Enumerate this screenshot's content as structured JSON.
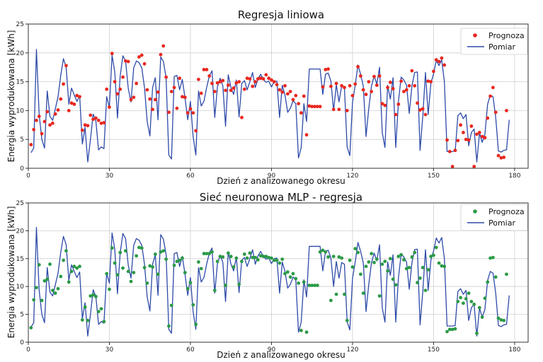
{
  "chart_data": [
    {
      "type": "line",
      "title": "Regresja liniowa",
      "xlabel": "Dzień z analizowanego okresu",
      "ylabel": "Energia wyprodukowana [kWh]",
      "xlim": [
        0,
        185
      ],
      "ylim": [
        0,
        25
      ],
      "xticks": [
        0,
        30,
        60,
        90,
        120,
        150,
        180
      ],
      "yticks": [
        0,
        5,
        10,
        15,
        20,
        25
      ],
      "grid": true,
      "legend_position": "top-right",
      "series": [
        {
          "name": "Prognoza",
          "kind": "scatter",
          "color": "#e8271f",
          "values": [
            4.1,
            6.7,
            8.3,
            9.0,
            6.0,
            8.1,
            9.8,
            7.5,
            7.8,
            9.4,
            10.1,
            12.0,
            14.6,
            17.8,
            10.0,
            11.3,
            11.1,
            12.6,
            12.4,
            6.6,
            7.5,
            7.4,
            9.2,
            8.5,
            8.7,
            8.3,
            7.8,
            7.9,
            13.7,
            10.6,
            19.9,
            15.0,
            12.9,
            13.7,
            15.8,
            18.6,
            18.5,
            11.9,
            12.3,
            14.7,
            19.3,
            19.6,
            18.1,
            13.6,
            12.0,
            10.2,
            11.9,
            13.2,
            19.7,
            21.2,
            15.8,
            9.7,
            13.3,
            14.0,
            10.4,
            15.6,
            12.4,
            12.3,
            9.6,
            10.3,
            9.6,
            6.5,
            15.4,
            13.0,
            17.1,
            17.1,
            16.0,
            14.7,
            13.3,
            14.8,
            15.0,
            15.2,
            13.5,
            14.4,
            13.5,
            13.9,
            14.8,
            15.0,
            8.8,
            13.7,
            15.6,
            15.5,
            14.2,
            15.0,
            15.5,
            15.6,
            15.5,
            16.2,
            15.6,
            15.3,
            15.0,
            14.5,
            13.6,
            13.2,
            14.3,
            12.9,
            13.3,
            11.9,
            12.6,
            11.2,
            9.6,
            12.5,
            5.8,
            10.8,
            10.7,
            10.7,
            10.7,
            10.7,
            14.1,
            17.1,
            17.2,
            14.2,
            10.2,
            14.7,
            10.2,
            14.3,
            14.0,
            10.0,
            14.3,
            12.6,
            14.6,
            17.6,
            16.0,
            13.6,
            12.8,
            15.0,
            13.3,
            15.9,
            14.4,
            16.0,
            11.2,
            10.9,
            14.0,
            14.9,
            13.8,
            9.3,
            11.1,
            15.1,
            13.3,
            13.6,
            14.3,
            16.9,
            14.3,
            11.3,
            10.1,
            10.3,
            9.3,
            15.1,
            15.0,
            16.8,
            18.8,
            18.5,
            19.1,
            17.9,
            4.9,
            2.9,
            0.3,
            3.1,
            4.8,
            7.5,
            6.2,
            5.0,
            4.9,
            7.3,
            0.3,
            5.9,
            6.2,
            5.5,
            5.3,
            8.7,
            12.5,
            14.0,
            9.7,
            2.2,
            1.8,
            1.9,
            10.0
          ]
        },
        {
          "name": "Pomiar",
          "kind": "line",
          "color": "#2e4aa8",
          "values": [
            2.7,
            3.5,
            20.6,
            9.4,
            5.0,
            3.5,
            13.4,
            9.0,
            8.3,
            10.3,
            12.4,
            16.1,
            19.0,
            17.5,
            11.1,
            13.9,
            12.7,
            11.6,
            12.6,
            4.2,
            7.1,
            1.1,
            5.0,
            9.4,
            8.2,
            3.2,
            3.7,
            3.4,
            12.4,
            10.6,
            19.6,
            16.7,
            8.7,
            16.0,
            19.5,
            18.6,
            13.8,
            11.5,
            17.4,
            18.6,
            18.3,
            17.4,
            14.0,
            8.1,
            5.6,
            14.0,
            15.7,
            8.4,
            19.3,
            18.5,
            15.7,
            2.3,
            1.6,
            15.9,
            16.1,
            13.6,
            15.4,
            12.2,
            8.4,
            11.6,
            5.5,
            2.3,
            13.4,
            10.8,
            11.6,
            14.0,
            16.0,
            16.9,
            8.8,
            14.1,
            15.6,
            14.3,
            7.3,
            16.2,
            14.0,
            12.8,
            15.3,
            8.9,
            14.7,
            15.2,
            13.6,
            15.0,
            16.6,
            14.0,
            15.5,
            16.3,
            15.4,
            14.9,
            15.1,
            14.1,
            15.0,
            15.1,
            8.8,
            14.4,
            12.7,
            9.7,
            10.4,
            11.7,
            11.2,
            1.8,
            3.6,
            11.2,
            8.1,
            17.2,
            17.2,
            17.2,
            17.2,
            17.2,
            12.8,
            16.3,
            16.5,
            15.1,
            10.0,
            14.5,
            11.5,
            14.3,
            14.0,
            3.7,
            2.2,
            11.5,
            14.4,
            17.9,
            16.3,
            14.2,
            5.5,
            10.3,
            14.2,
            16.0,
            14.6,
            17.5,
            6.2,
            3.6,
            14.4,
            12.0,
            15.7,
            3.6,
            11.6,
            15.8,
            15.3,
            14.4,
            9.5,
            14.3,
            16.6,
            16.7,
            3.1,
            9.0,
            16.6,
            9.3,
            14.7,
            16.4,
            18.7,
            17.8,
            18.8,
            15.0,
            2.9,
            2.9,
            2.9,
            3.0,
            9.1,
            9.6,
            8.6,
            9.3,
            3.9,
            6.2,
            6.8,
            1.1,
            6.1,
            4.5,
            5.9,
            11.1,
            12.7,
            12.4,
            8.8,
            3.0,
            2.8,
            3.1,
            3.2,
            8.4
          ]
        }
      ]
    },
    {
      "type": "line",
      "title": "Sieć neuronowa MLP - regresja",
      "xlabel": "Dzień z analizowanego okresu",
      "ylabel": "Energia wyprodukowana [kWh]",
      "xlim": [
        0,
        185
      ],
      "ylim": [
        0,
        25
      ],
      "xticks": [
        0,
        30,
        60,
        90,
        120,
        150,
        180
      ],
      "yticks": [
        0,
        5,
        10,
        15,
        20,
        25
      ],
      "grid": true,
      "legend_position": "top-right",
      "series": [
        {
          "name": "Prognoza",
          "kind": "scatter",
          "color": "#2a9a46",
          "values": [
            2.6,
            7.6,
            9.8,
            13.9,
            7.5,
            11.0,
            11.3,
            14.0,
            9.3,
            8.8,
            9.6,
            11.8,
            14.7,
            16.4,
            10.8,
            12.7,
            13.6,
            13.3,
            13.6,
            4.0,
            6.3,
            3.9,
            8.3,
            8.5,
            8.2,
            5.5,
            6.0,
            3.7,
            12.3,
            9.5,
            16.9,
            14.2,
            12.1,
            16.1,
            13.3,
            16.4,
            12.7,
            10.9,
            12.5,
            15.5,
            17.0,
            16.9,
            13.4,
            10.6,
            13.7,
            13.5,
            15.8,
            12.2,
            16.2,
            16.4,
            14.9,
            2.9,
            6.6,
            13.8,
            14.5,
            14.7,
            15.1,
            12.5,
            9.6,
            10.7,
            6.7,
            3.2,
            14.4,
            13.2,
            15.9,
            15.9,
            15.9,
            16.2,
            9.3,
            14.5,
            15.4,
            15.3,
            10.2,
            16.0,
            15.4,
            13.5,
            15.1,
            10.4,
            14.5,
            15.8,
            15.1,
            16.0,
            15.2,
            15.2,
            14.8,
            15.5,
            15.4,
            15.4,
            15.2,
            15.1,
            14.7,
            14.7,
            14.2,
            14.9,
            12.3,
            12.6,
            11.7,
            12.3,
            11.4,
            10.6,
            2.1,
            10.8,
            1.8,
            10.2,
            10.2,
            10.2,
            10.2,
            16.2,
            16.5,
            16.2,
            15.3,
            7.5,
            15.4,
            8.6,
            15.3,
            15.1,
            8.6,
            3.9,
            14.7,
            13.5,
            16.8,
            16.1,
            12.2,
            8.8,
            13.6,
            14.4,
            15.9,
            14.3,
            14.9,
            8.3,
            14.0,
            14.5,
            12.8,
            15.0,
            11.3,
            10.3,
            15.4,
            15.7,
            14.8,
            13.2,
            13.4,
            15.3,
            16.1,
            10.7,
            11.5,
            13.4,
            9.3,
            13.0,
            15.4,
            15.6,
            17.0,
            14.2,
            13.7,
            13.6,
            1.9,
            2.3,
            2.3,
            2.4,
            7.3,
            8.0,
            7.0,
            7.8,
            8.8,
            7.3,
            6.8,
            1.6,
            6.2,
            4.5,
            7.9,
            10.8,
            15.1,
            15.2,
            11.7,
            4.3,
            4.0,
            3.9,
            12.2
          ]
        },
        {
          "name": "Pomiar",
          "kind": "line",
          "color": "#2e4aa8",
          "values": [
            2.7,
            3.5,
            20.6,
            9.4,
            5.0,
            3.5,
            13.4,
            9.0,
            8.3,
            10.3,
            12.4,
            16.1,
            19.0,
            17.5,
            11.1,
            13.9,
            12.7,
            11.6,
            12.6,
            4.2,
            7.1,
            1.1,
            5.0,
            9.4,
            8.2,
            3.2,
            3.7,
            3.4,
            12.4,
            10.6,
            19.6,
            16.7,
            8.7,
            16.0,
            19.5,
            18.6,
            13.8,
            11.5,
            17.4,
            18.6,
            18.3,
            17.4,
            14.0,
            8.1,
            5.6,
            14.0,
            15.7,
            8.4,
            19.3,
            18.5,
            15.7,
            2.3,
            1.6,
            15.9,
            16.1,
            13.6,
            15.4,
            12.2,
            8.4,
            11.6,
            5.5,
            2.3,
            13.4,
            10.8,
            11.6,
            14.0,
            16.0,
            16.9,
            8.8,
            14.1,
            15.6,
            14.3,
            7.3,
            16.2,
            14.0,
            12.8,
            15.3,
            8.9,
            14.7,
            15.2,
            13.6,
            15.0,
            16.6,
            14.0,
            15.5,
            16.3,
            15.4,
            14.9,
            15.1,
            14.1,
            15.0,
            15.1,
            8.8,
            14.4,
            12.7,
            9.7,
            10.4,
            11.7,
            11.2,
            1.8,
            3.6,
            11.2,
            8.1,
            17.2,
            17.2,
            17.2,
            17.2,
            17.2,
            12.8,
            16.3,
            16.5,
            15.1,
            10.0,
            14.5,
            11.5,
            14.3,
            14.0,
            3.7,
            2.2,
            11.5,
            14.4,
            17.9,
            16.3,
            14.2,
            5.5,
            10.3,
            14.2,
            16.0,
            14.6,
            17.5,
            6.2,
            3.6,
            14.4,
            12.0,
            15.7,
            3.6,
            11.6,
            15.8,
            15.3,
            14.4,
            9.5,
            14.3,
            16.6,
            16.7,
            3.1,
            9.0,
            16.6,
            9.3,
            14.7,
            16.4,
            18.7,
            17.8,
            18.8,
            15.0,
            2.9,
            2.9,
            2.9,
            3.0,
            9.1,
            9.6,
            8.6,
            9.3,
            3.9,
            6.2,
            6.8,
            1.1,
            6.1,
            4.5,
            5.9,
            11.1,
            12.7,
            12.4,
            8.8,
            3.0,
            2.8,
            3.1,
            3.2,
            8.4
          ]
        }
      ]
    }
  ]
}
